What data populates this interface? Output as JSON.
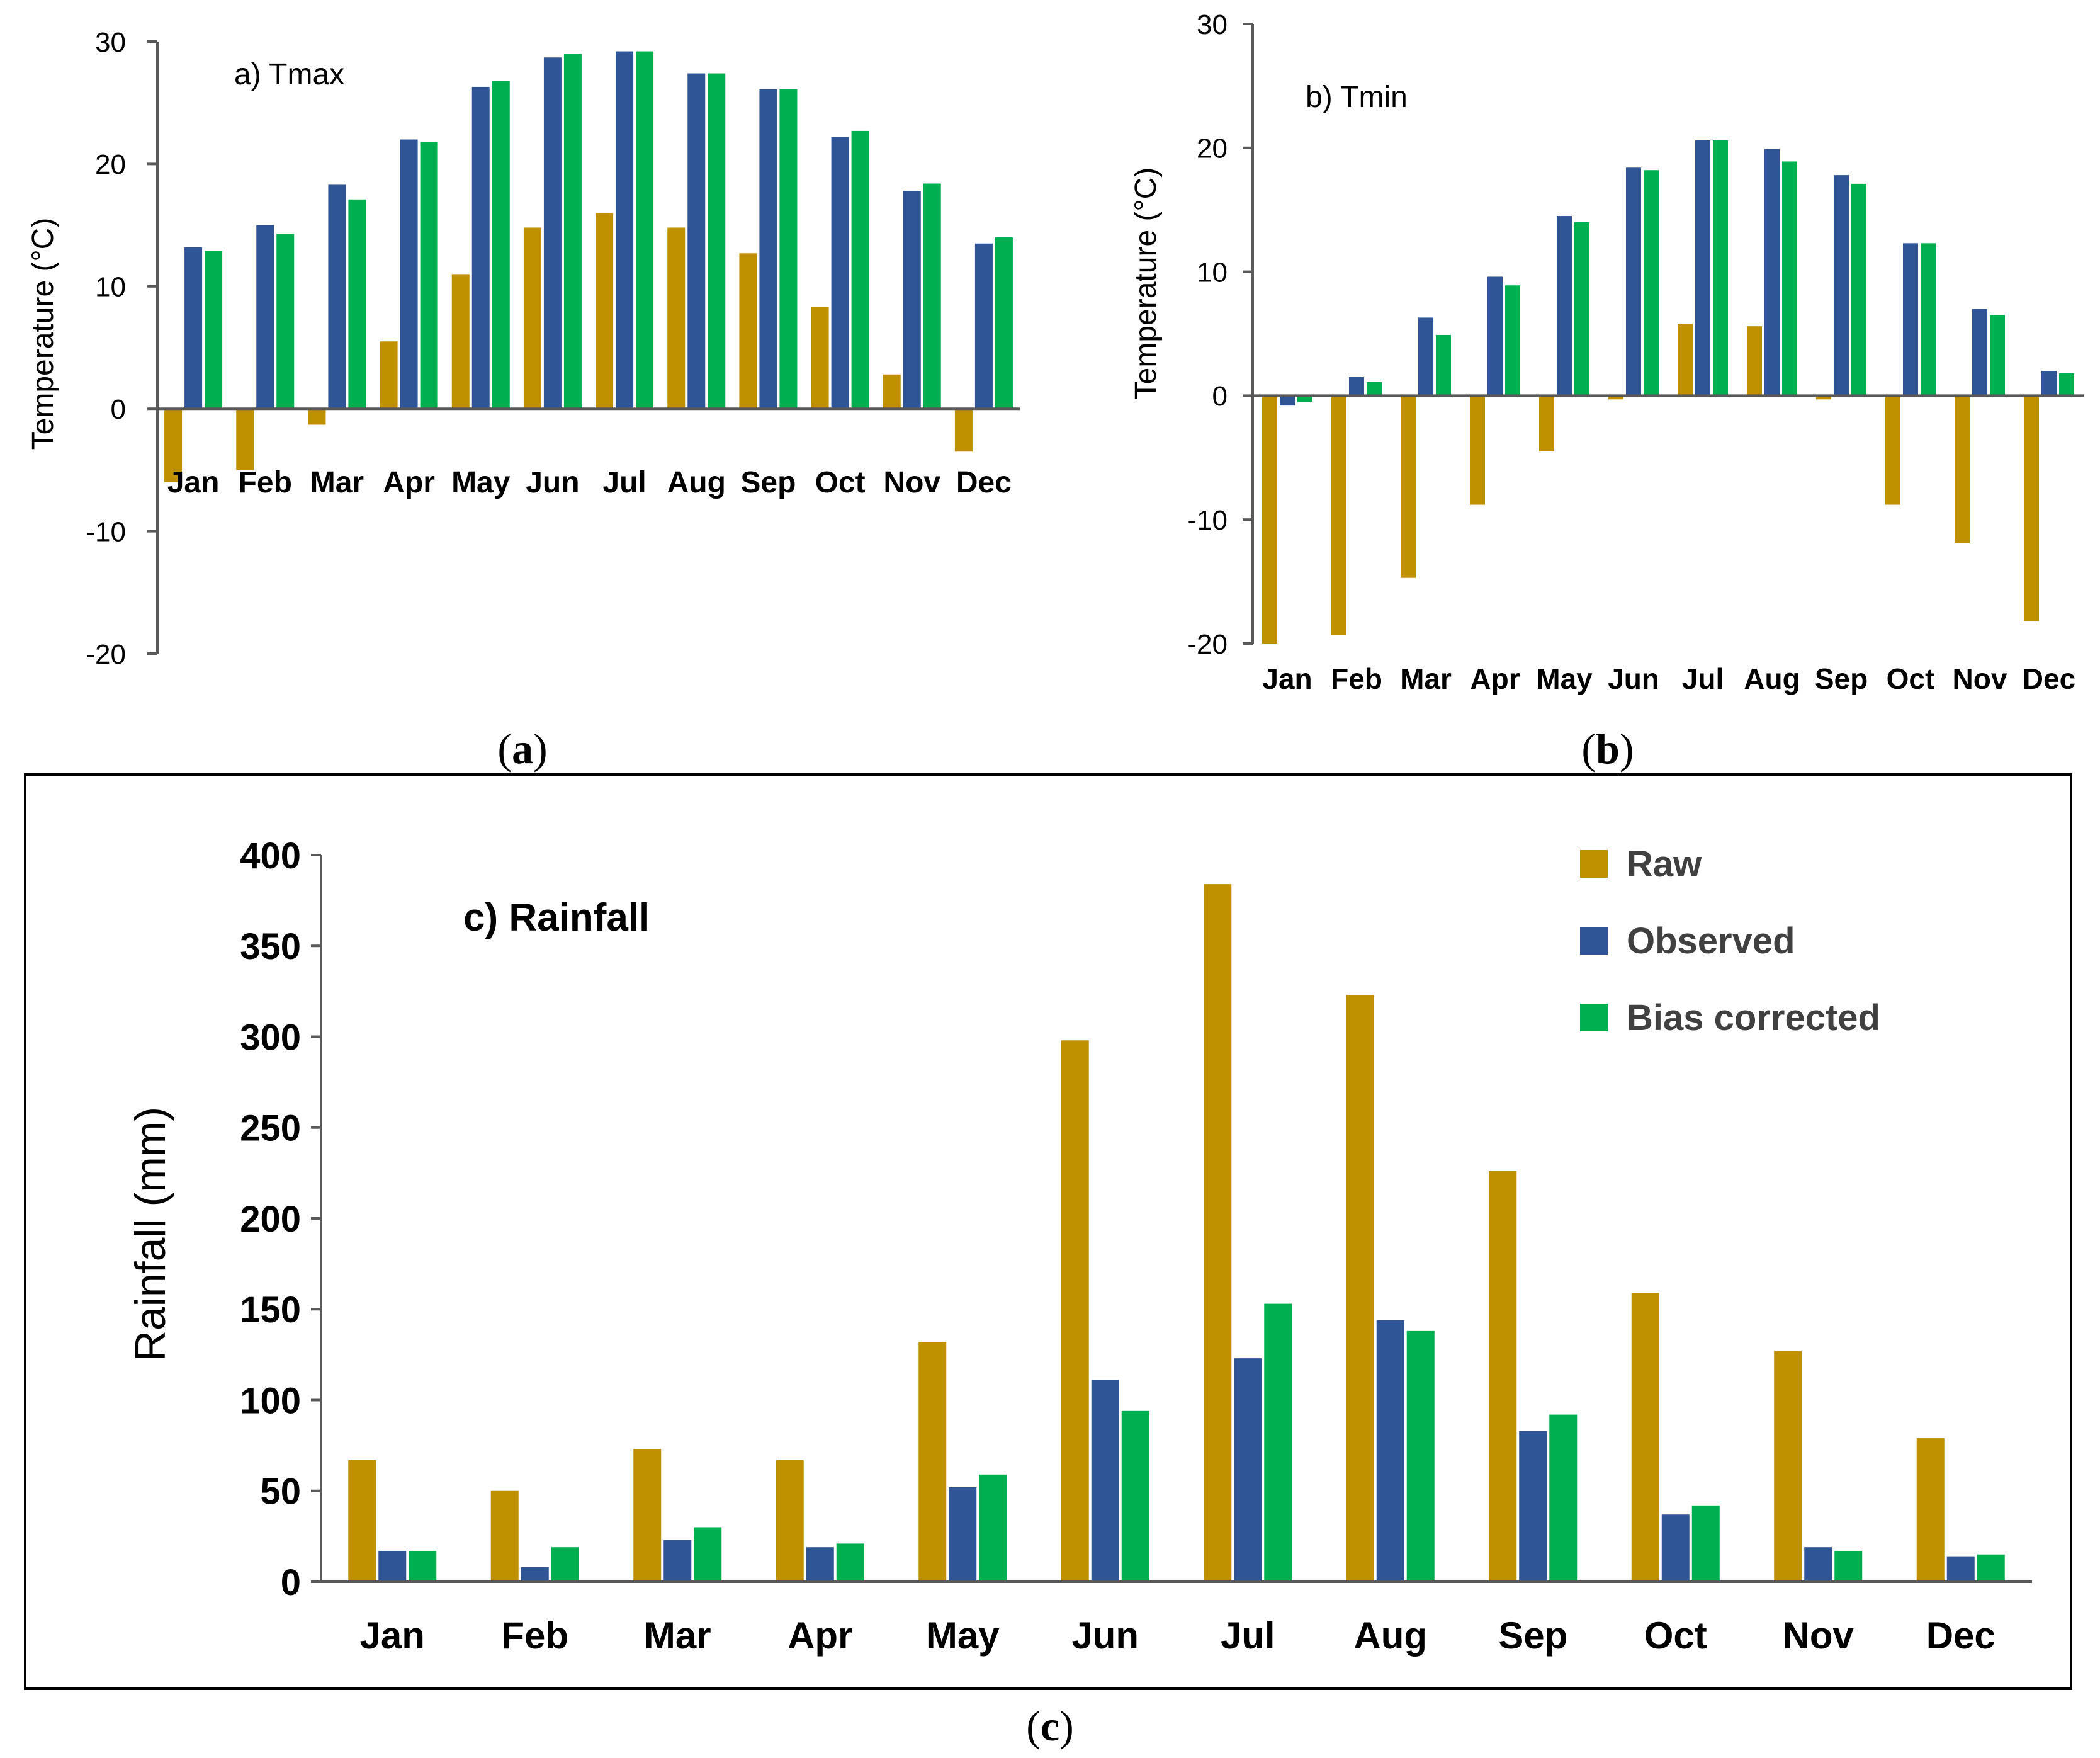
{
  "colors": {
    "raw": "#BF9000",
    "observed": "#2F5597",
    "bias": "#00B050",
    "axis": "#595959",
    "text": "#000000"
  },
  "chart_data": [
    {
      "id": "a",
      "type": "bar",
      "title": "a) Tmax",
      "panel_label": {
        "open": "(",
        "letter": "a",
        "close": ")"
      },
      "ylabel": "Temperature (°C)",
      "xlabel": "",
      "ylim": [
        -20,
        30
      ],
      "yticks": [
        30,
        20,
        10,
        0,
        -10,
        -20
      ],
      "categories": [
        "Jan",
        "Feb",
        "Mar",
        "Apr",
        "May",
        "Jun",
        "Jul",
        "Aug",
        "Sep",
        "Oct",
        "Nov",
        "Dec"
      ],
      "series": [
        {
          "name": "Raw",
          "color_key": "raw",
          "values": [
            -6,
            -5,
            -1.3,
            5.5,
            11,
            14.8,
            16,
            14.8,
            12.7,
            8.3,
            2.8,
            -3.5
          ]
        },
        {
          "name": "Observed",
          "color_key": "observed",
          "values": [
            13.2,
            15,
            18.3,
            22,
            26.3,
            28.7,
            29.2,
            27.4,
            26.1,
            22.2,
            17.8,
            13.5
          ]
        },
        {
          "name": "Bias corrected",
          "color_key": "bias",
          "values": [
            12.9,
            14.3,
            17.1,
            21.8,
            26.8,
            29,
            29.2,
            27.4,
            26.1,
            22.7,
            18.4,
            14
          ]
        }
      ]
    },
    {
      "id": "b",
      "type": "bar",
      "title": "b) Tmin",
      "panel_label": {
        "open": "(",
        "letter": "b",
        "close": ")"
      },
      "ylabel": "Temperature (°C)",
      "xlabel": "",
      "ylim": [
        -20,
        30
      ],
      "yticks": [
        30,
        20,
        10,
        0,
        -10,
        -20
      ],
      "categories": [
        "Jan",
        "Feb",
        "Mar",
        "Apr",
        "May",
        "Jun",
        "Jul",
        "Aug",
        "Sep",
        "Oct",
        "Nov",
        "Dec"
      ],
      "series": [
        {
          "name": "Raw",
          "color_key": "raw",
          "values": [
            -20,
            -19.3,
            -14.7,
            -8.8,
            -4.5,
            -0.3,
            5.8,
            5.6,
            -0.3,
            -8.8,
            -11.9,
            -18.2
          ]
        },
        {
          "name": "Observed",
          "color_key": "observed",
          "values": [
            -0.8,
            1.5,
            6.3,
            9.6,
            14.5,
            18.4,
            20.6,
            19.9,
            17.8,
            12.3,
            7,
            2
          ]
        },
        {
          "name": "Bias corrected",
          "color_key": "bias",
          "values": [
            -0.5,
            1.1,
            4.9,
            8.9,
            14,
            18.2,
            20.6,
            18.9,
            17.1,
            12.3,
            6.5,
            1.8
          ]
        }
      ]
    },
    {
      "id": "c",
      "type": "bar",
      "title": "c) Rainfall",
      "panel_label": {
        "open": "(",
        "letter": "c",
        "close": ")"
      },
      "ylabel": "Rainfall (mm)",
      "xlabel": "",
      "ylim": [
        0,
        400
      ],
      "yticks": [
        400,
        350,
        300,
        250,
        200,
        150,
        100,
        50,
        0
      ],
      "legend": {
        "position": "top-right",
        "entries": [
          "Raw",
          "Observed",
          "Bias corrected"
        ]
      },
      "categories": [
        "Jan",
        "Feb",
        "Mar",
        "Apr",
        "May",
        "Jun",
        "Jul",
        "Aug",
        "Sep",
        "Oct",
        "Nov",
        "Dec"
      ],
      "series": [
        {
          "name": "Raw",
          "color_key": "raw",
          "values": [
            67,
            50,
            73,
            67,
            132,
            298,
            384,
            323,
            226,
            159,
            127,
            79
          ]
        },
        {
          "name": "Observed",
          "color_key": "observed",
          "values": [
            17,
            8,
            23,
            19,
            52,
            111,
            123,
            144,
            83,
            37,
            19,
            14
          ]
        },
        {
          "name": "Bias corrected",
          "color_key": "bias",
          "values": [
            17,
            19,
            30,
            21,
            59,
            94,
            153,
            138,
            92,
            42,
            17,
            15
          ]
        }
      ]
    }
  ]
}
